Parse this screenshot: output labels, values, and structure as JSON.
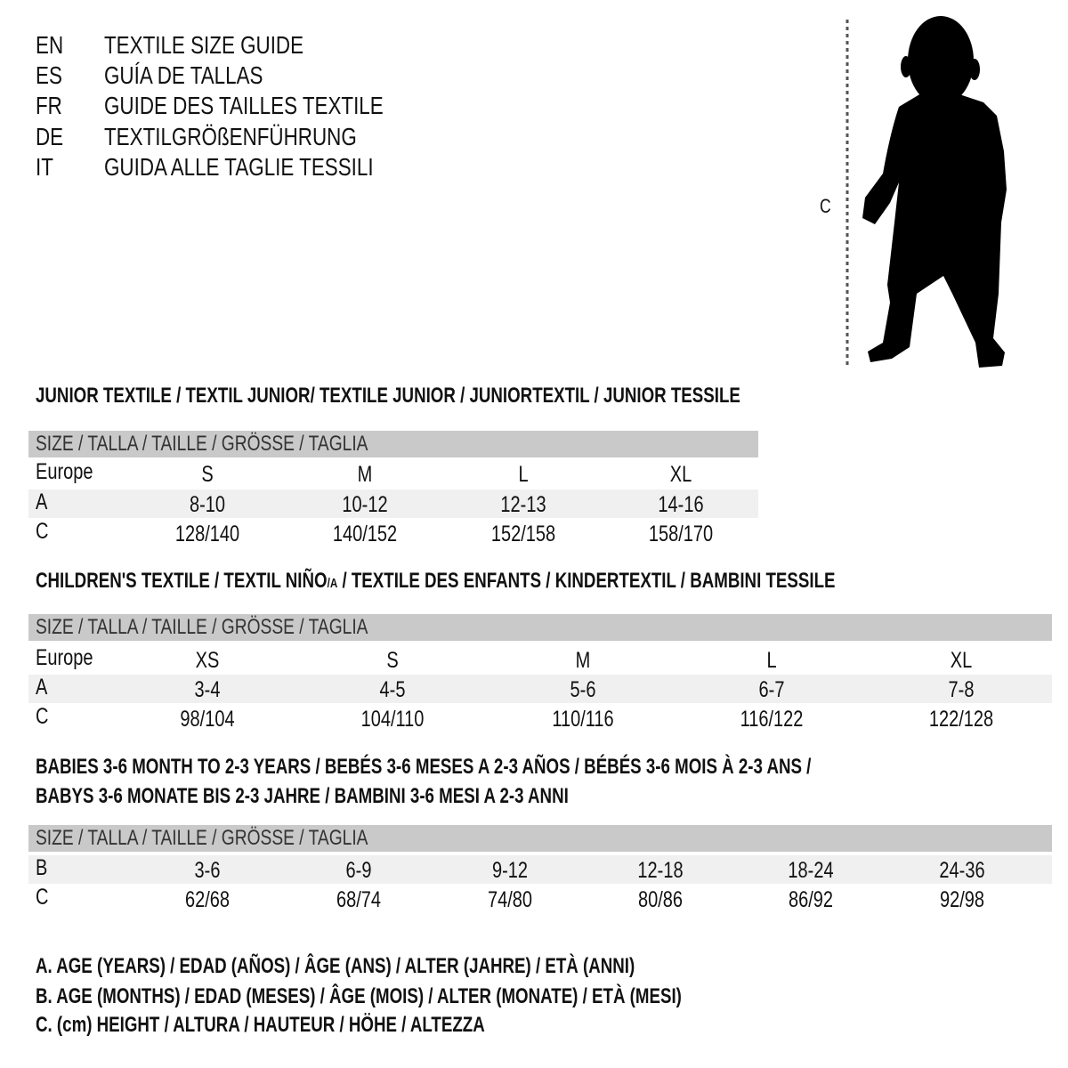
{
  "languages": [
    {
      "code": "EN",
      "text": "TEXTILE SIZE GUIDE"
    },
    {
      "code": "ES",
      "text": "GUÍA DE TALLAS"
    },
    {
      "code": "FR",
      "text": "GUIDE DES TAILLES TEXTILE"
    },
    {
      "code": "DE",
      "text": "TEXTILGRÖßENFÜHRUNG"
    },
    {
      "code": "IT",
      "text": "GUIDA ALLE TAGLIE TESSILI"
    }
  ],
  "figure": {
    "measure_label": "C",
    "icon": "child-silhouette-icon"
  },
  "size_header": "SIZE / TALLA / TAILLE / GRÖSSE / TAGLIA",
  "junior": {
    "title": "JUNIOR TEXTILE / TEXTIL JUNIOR/ TEXTILE JUNIOR / JUNIORTEXTIL / JUNIOR TESSILE",
    "rows": [
      {
        "label": "Europe",
        "values": [
          "S",
          "M",
          "L",
          "XL"
        ]
      },
      {
        "label": "A",
        "values": [
          "8-10",
          "10-12",
          "12-13",
          "14-16"
        ]
      },
      {
        "label": "C",
        "values": [
          "128/140",
          "140/152",
          "152/158",
          "158/170"
        ]
      }
    ]
  },
  "children": {
    "title_a": "CHILDREN'S TEXTILE / TEXTIL NIÑO",
    "title_sub": "/A",
    "title_b": " / TEXTILE DES ENFANTS / KINDERTEXTIL / BAMBINI TESSILE",
    "rows": [
      {
        "label": "Europe",
        "values": [
          "XS",
          "S",
          "M",
          "L",
          "XL"
        ]
      },
      {
        "label": "A",
        "values": [
          "3-4",
          "4-5",
          "5-6",
          "6-7",
          "7-8"
        ]
      },
      {
        "label": "C",
        "values": [
          "98/104",
          "104/110",
          "110/116",
          "116/122",
          "122/128"
        ]
      }
    ]
  },
  "babies": {
    "title_line1": "BABIES 3-6 MONTH TO 2-3 YEARS / BEBÉS 3-6 MESES A 2-3 AÑOS / BÉBÉS 3-6 MOIS À 2-3 ANS /",
    "title_line2": "BABYS 3-6 MONATE BIS 2-3 JAHRE / BAMBINI 3-6 MESI A 2-3 ANNI",
    "rows": [
      {
        "label": "B",
        "values": [
          "3-6",
          "6-9",
          "9-12",
          "12-18",
          "18-24",
          "24-36"
        ]
      },
      {
        "label": "C",
        "values": [
          "62/68",
          "68/74",
          "74/80",
          "80/86",
          "86/92",
          "92/98"
        ]
      }
    ]
  },
  "legend": [
    "A. AGE (YEARS) / EDAD (AÑOS) / ÂGE (ANS) / ALTER (JAHRE) / ETÀ (ANNI)",
    "B. AGE (MONTHS) / EDAD (MESES) / ÂGE (MOIS) / ALTER (MONATE) / ETÀ (MESI)",
    "C. (cm) HEIGHT / ALTURA / HAUTEUR / HÖHE / ALTEZZA"
  ],
  "colors": {
    "header_bar": "#c9c9c9",
    "row_band": "#f0f0f0",
    "text": "#111111"
  }
}
